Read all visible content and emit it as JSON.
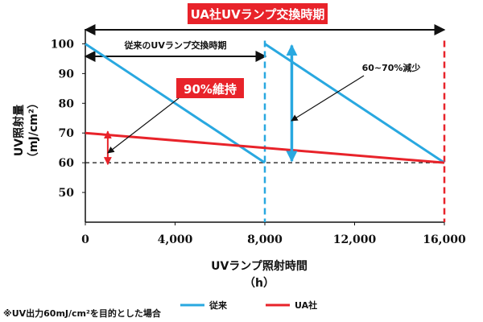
{
  "chart_data": {
    "type": "line",
    "title": "",
    "xlabel": "UVランプ照射時間",
    "xlabel_unit": "（h）",
    "ylabel": "UV照射量",
    "ylabel_unit": "（mJ/cm²）",
    "xlim": [
      0,
      16000
    ],
    "ylim": [
      40,
      105
    ],
    "x_ticks": [
      "0",
      "4,000",
      "8,000",
      "12,000",
      "16,000"
    ],
    "x_tick_values": [
      0,
      4000,
      8000,
      12000,
      16000
    ],
    "y_ticks": [
      "50",
      "60",
      "70",
      "80",
      "90",
      "100"
    ],
    "y_tick_values": [
      50,
      60,
      70,
      80,
      90,
      100
    ],
    "grid": false,
    "legend_position": "bottom",
    "series": [
      {
        "name": "従来",
        "color": "#29a8e0",
        "segments": [
          [
            [
              0,
              100
            ],
            [
              8000,
              60
            ]
          ],
          [
            [
              8000,
              100
            ],
            [
              16000,
              60
            ]
          ]
        ]
      },
      {
        "name": "UA社",
        "color": "#e8232a",
        "segments": [
          [
            [
              0,
              70
            ],
            [
              16000,
              60
            ]
          ]
        ]
      }
    ],
    "reference_line": {
      "y": 60,
      "style": "dashed",
      "color": "#111111"
    },
    "replacement_markers": [
      {
        "x": 8000,
        "color": "#29a8e0",
        "style": "dashed"
      },
      {
        "x": 16000,
        "color": "#e8232a",
        "style": "dashed"
      }
    ],
    "annotations": {
      "top_banner": "UA社UVランプ交換時期",
      "conventional_period": "従来のUVランプ交換時期",
      "maintain_label": "90%維持",
      "reduction_label": "60~70%減少",
      "footnote": "※UV出力60mJ/cm²を目的とした場合"
    },
    "colors": {
      "conventional": "#29a8e0",
      "ua": "#e8232a",
      "banner_bg": "#e8232a",
      "axis": "#111111"
    }
  }
}
